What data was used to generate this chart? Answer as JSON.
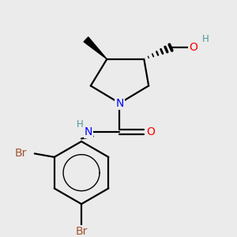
{
  "background_color": "#ebebeb",
  "atom_colors": {
    "N": "#0000FF",
    "O": "#FF0000",
    "Br": "#A0522D",
    "H_teal": "#4a9a9a"
  },
  "lw": 1.6,
  "fs": 10,
  "fs_small": 8.5
}
